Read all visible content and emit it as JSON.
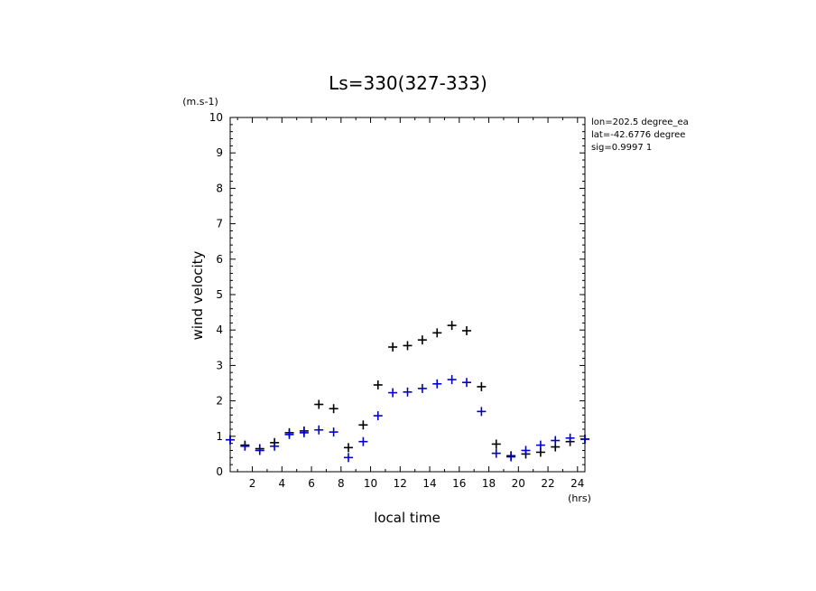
{
  "chart_data": {
    "type": "scatter",
    "title": "Ls=330(327-333)",
    "xlabel": "local time",
    "ylabel": "wind velocity",
    "x_unit": "(hrs)",
    "y_unit": "(m.s-1)",
    "xlim": [
      0.5,
      24.5
    ],
    "ylim": [
      0,
      10
    ],
    "xticks": [
      2,
      4,
      6,
      8,
      10,
      12,
      14,
      16,
      18,
      20,
      22,
      24
    ],
    "yticks": [
      0,
      1,
      2,
      3,
      4,
      5,
      6,
      7,
      8,
      9,
      10
    ],
    "info": [
      "lon=202.5 degree_ea",
      "lat=-42.6776 degree",
      "sig=0.9997 1"
    ],
    "series": [
      {
        "color": "#000000",
        "marker": "plus",
        "x": [
          0.5,
          1.5,
          2.5,
          3.5,
          4.5,
          5.5,
          6.5,
          7.5,
          8.5,
          9.5,
          10.5,
          11.5,
          12.5,
          13.5,
          14.5,
          15.5,
          16.5,
          17.5,
          18.5,
          19.5,
          20.5,
          21.5,
          22.5,
          23.5,
          24.5
        ],
        "y": [
          0.9,
          0.75,
          0.65,
          0.82,
          1.1,
          1.15,
          1.9,
          1.78,
          0.68,
          1.32,
          2.45,
          3.52,
          3.56,
          3.72,
          3.92,
          4.13,
          3.98,
          2.4,
          0.78,
          0.45,
          0.5,
          0.55,
          0.7,
          0.85,
          0.92
        ]
      },
      {
        "color": "#0000cc",
        "marker": "plus",
        "x": [
          0.5,
          1.5,
          2.5,
          3.5,
          4.5,
          5.5,
          6.5,
          7.5,
          8.5,
          9.5,
          10.5,
          11.5,
          12.5,
          13.5,
          14.5,
          15.5,
          16.5,
          17.5,
          18.5,
          19.5,
          20.5,
          21.5,
          22.5,
          23.5,
          24.5
        ],
        "y": [
          0.9,
          0.72,
          0.6,
          0.72,
          1.05,
          1.1,
          1.18,
          1.12,
          0.4,
          0.85,
          1.58,
          2.23,
          2.25,
          2.35,
          2.48,
          2.6,
          2.52,
          1.7,
          0.52,
          0.42,
          0.6,
          0.75,
          0.88,
          0.95,
          0.92
        ]
      }
    ]
  }
}
